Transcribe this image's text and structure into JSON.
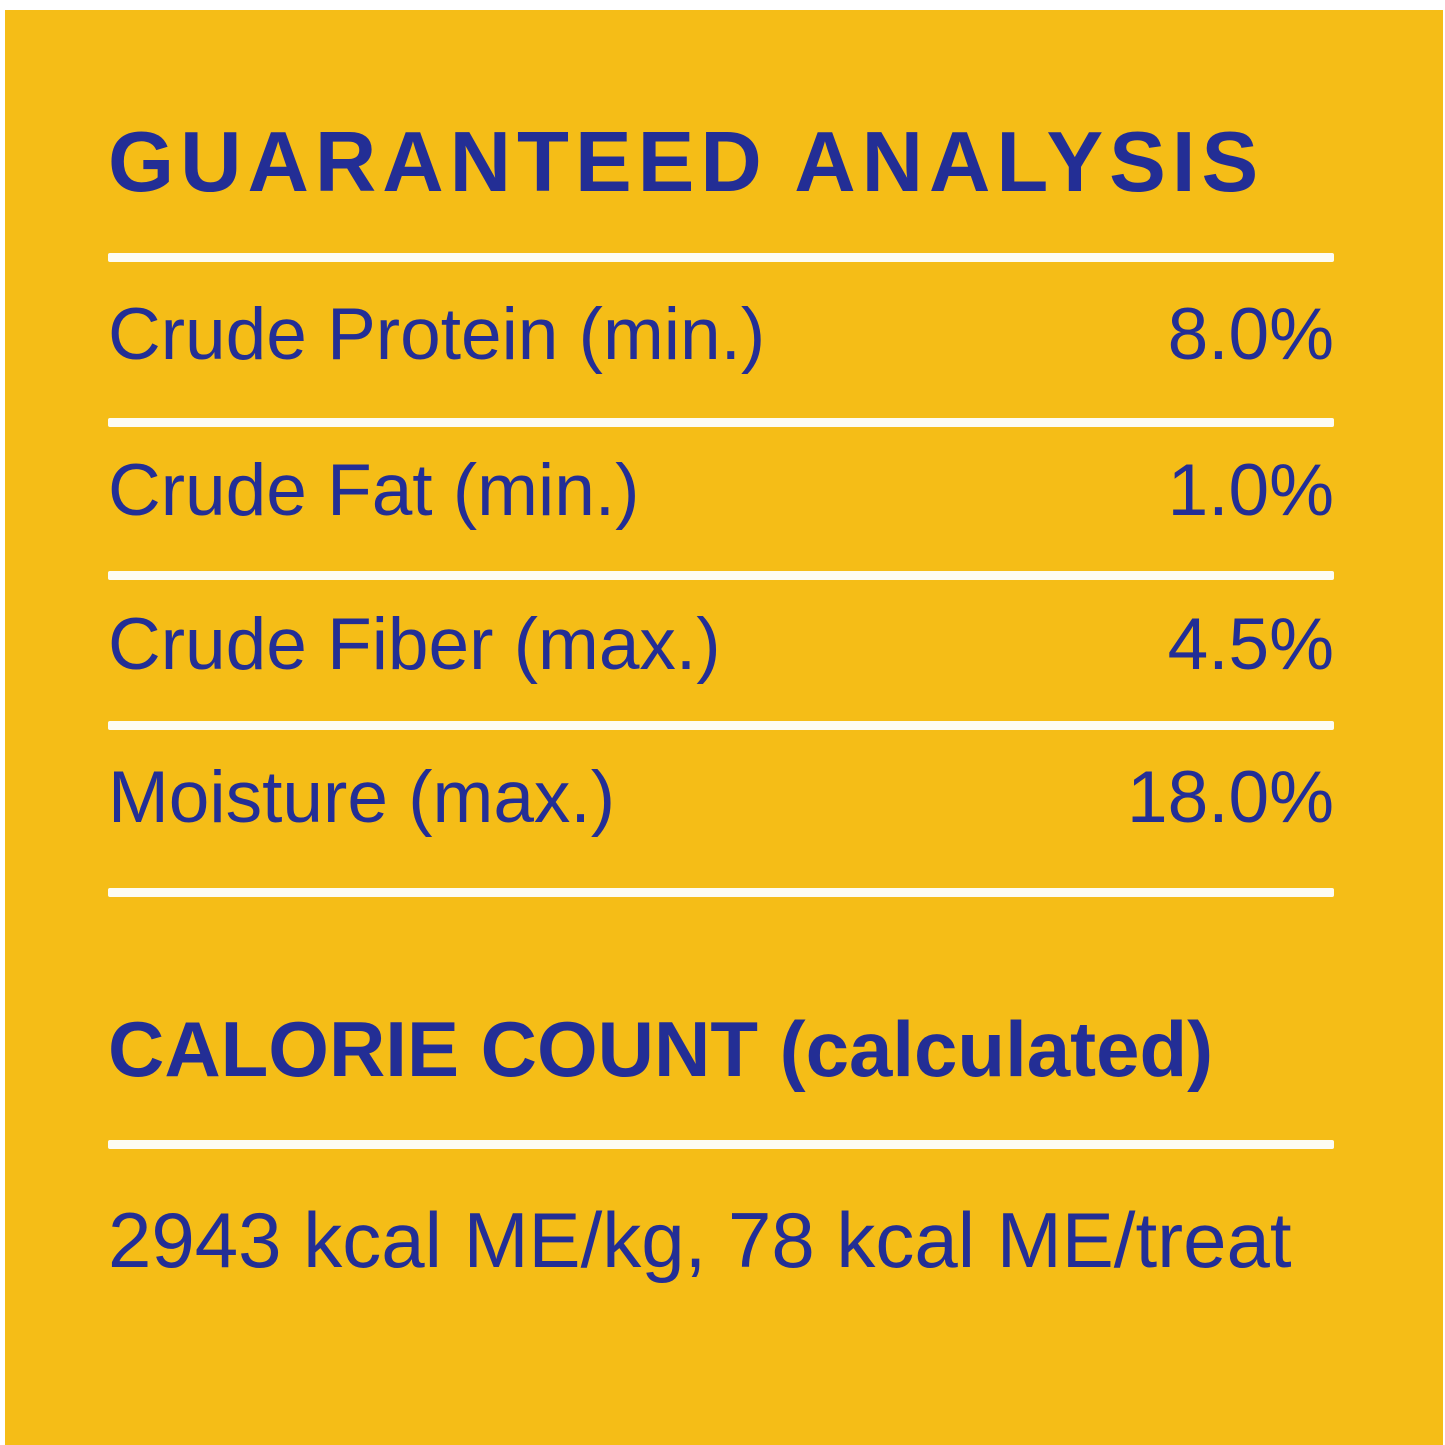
{
  "colors": {
    "panel_background": "#F5BD17",
    "text_navy": "#232E95",
    "divider_white": "#FDFCF2",
    "page_border": "#FFFFFF"
  },
  "title": "GUARANTEED ANALYSIS",
  "analysis_rows": [
    {
      "label": "Crude Protein (min.)",
      "value": "8.0%"
    },
    {
      "label": "Crude Fat (min.)",
      "value": "1.0%"
    },
    {
      "label": "Crude Fiber (max.)",
      "value": "4.5%"
    },
    {
      "label": "Moisture (max.)",
      "value": "18.0%"
    }
  ],
  "calorie_section": {
    "title": "CALORIE COUNT (calculated)",
    "value": "2943 kcal ME/kg, 78 kcal ME/treat"
  }
}
